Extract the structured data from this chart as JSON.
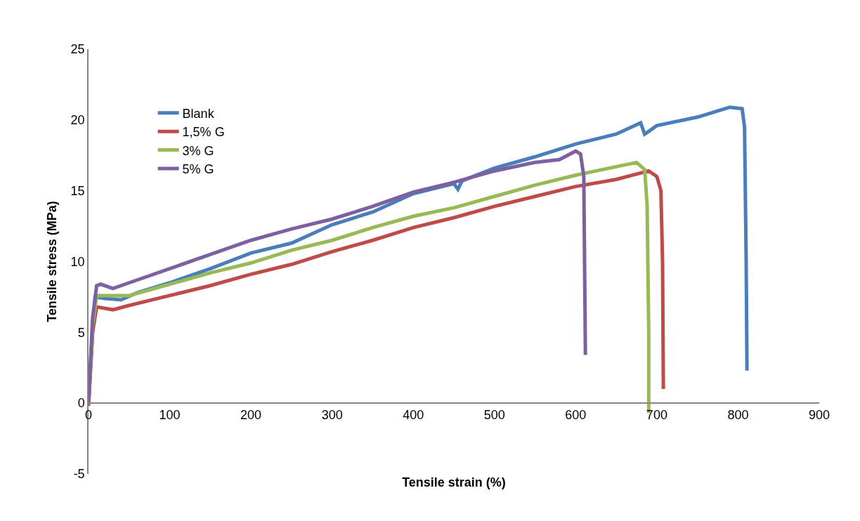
{
  "chart_data": {
    "type": "line",
    "xlabel": "Tensile strain (%)",
    "ylabel": "Tensile stress (MPa)",
    "xlim": [
      0,
      900
    ],
    "xticks": [
      0,
      100,
      200,
      300,
      400,
      500,
      600,
      700,
      800,
      900
    ],
    "ylim": [
      -5,
      25
    ],
    "yticks": [
      -5,
      0,
      5,
      10,
      15,
      20,
      25
    ],
    "legend": "top left",
    "marker": "none",
    "line_style": "solid",
    "series": [
      {
        "name": "Blank",
        "color": "#4a7ebb",
        "x": [
          0,
          5,
          8,
          20,
          40,
          60,
          100,
          150,
          200,
          250,
          300,
          350,
          400,
          450,
          455,
          460,
          500,
          550,
          600,
          650,
          680,
          685,
          700,
          750,
          790,
          805,
          808,
          810,
          811
        ],
        "values": [
          0,
          5,
          7.5,
          7.4,
          7.3,
          7.8,
          8.5,
          9.5,
          10.6,
          11.3,
          12.6,
          13.5,
          14.8,
          15.5,
          15.1,
          15.7,
          16.6,
          17.4,
          18.3,
          19.0,
          19.8,
          19.0,
          19.6,
          20.2,
          20.9,
          20.8,
          19.5,
          10,
          2.3
        ]
      },
      {
        "name": "1,5% G",
        "color": "#be4b48",
        "x": [
          0,
          5,
          10,
          30,
          50,
          100,
          150,
          200,
          250,
          300,
          350,
          400,
          450,
          500,
          550,
          600,
          650,
          690,
          700,
          705,
          707,
          708
        ],
        "values": [
          -0.2,
          5,
          6.8,
          6.6,
          6.9,
          7.6,
          8.3,
          9.1,
          9.8,
          10.7,
          11.5,
          12.4,
          13.1,
          13.9,
          14.6,
          15.3,
          15.8,
          16.4,
          16.0,
          15.0,
          10,
          1.0
        ]
      },
      {
        "name": "3% G",
        "color": "#98b954",
        "x": [
          0,
          5,
          10,
          30,
          50,
          100,
          150,
          200,
          250,
          300,
          350,
          400,
          450,
          500,
          550,
          600,
          650,
          675,
          685,
          688,
          690,
          690
        ],
        "values": [
          0,
          5.5,
          7.6,
          7.6,
          7.6,
          8.4,
          9.2,
          9.9,
          10.8,
          11.5,
          12.4,
          13.2,
          13.8,
          14.6,
          15.4,
          16.1,
          16.7,
          17.0,
          16.5,
          14,
          5,
          -0.7
        ]
      },
      {
        "name": "5% G",
        "color": "#7d60a0",
        "x": [
          0,
          5,
          10,
          15,
          30,
          50,
          100,
          150,
          200,
          250,
          300,
          350,
          400,
          450,
          500,
          550,
          580,
          600,
          606,
          610,
          612
        ],
        "values": [
          0,
          6,
          8.3,
          8.4,
          8.1,
          8.5,
          9.5,
          10.5,
          11.5,
          12.3,
          13.0,
          13.9,
          14.9,
          15.6,
          16.4,
          17.0,
          17.2,
          17.8,
          17.6,
          16,
          3.4
        ]
      }
    ]
  }
}
